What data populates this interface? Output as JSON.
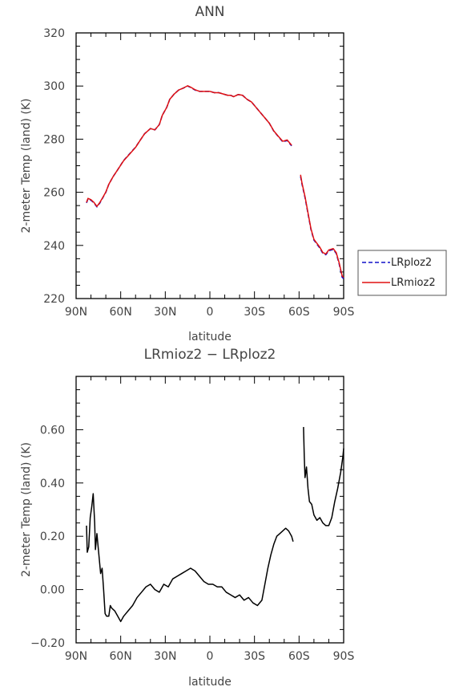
{
  "colors": {
    "LRploz2": "#1010c8",
    "LRmioz2": "#e01010",
    "diff": "#000000"
  },
  "chart_data": [
    {
      "type": "line",
      "title": "ANN",
      "xlabel": "latitude",
      "ylabel": "2-meter Temp (land) (K)",
      "xlim": [
        90,
        -90
      ],
      "ylim": [
        220,
        320
      ],
      "x_ticks": [
        90,
        60,
        30,
        0,
        -30,
        -60,
        -90
      ],
      "x_tick_labels": [
        "90N",
        "60N",
        "30N",
        "0",
        "30S",
        "60S",
        "90S"
      ],
      "y_ticks": [
        220,
        240,
        260,
        280,
        300,
        320
      ],
      "y_tick_labels": [
        "220",
        "240",
        "260",
        "280",
        "300",
        "320"
      ],
      "legend_position": "right",
      "grid": false,
      "series": [
        {
          "name": "LRploz2",
          "style": "dashed",
          "segments": [
            [
              [
                83,
                256
              ],
              [
                82,
                257.5
              ],
              [
                80,
                257
              ],
              [
                78,
                256
              ],
              [
                76,
                254.5
              ],
              [
                74,
                256
              ],
              [
                72,
                258
              ],
              [
                70,
                260
              ],
              [
                68,
                263
              ],
              [
                65,
                266
              ],
              [
                62,
                268.5
              ],
              [
                58,
                272
              ],
              [
                54,
                274.5
              ],
              [
                50,
                277
              ],
              [
                47,
                279.5
              ],
              [
                44,
                282
              ],
              [
                40,
                284
              ],
              [
                37,
                283.5
              ],
              [
                34,
                285.5
              ],
              [
                32,
                289
              ],
              [
                29,
                292
              ],
              [
                27,
                295
              ],
              [
                24,
                297
              ],
              [
                21,
                298.5
              ],
              [
                18,
                299.2
              ],
              [
                15,
                300
              ],
              [
                13,
                299.5
              ],
              [
                10,
                298.5
              ],
              [
                7,
                298
              ],
              [
                4,
                298
              ],
              [
                0,
                298
              ],
              [
                -3,
                297.5
              ],
              [
                -6,
                297.5
              ],
              [
                -9,
                297
              ],
              [
                -12,
                296.5
              ],
              [
                -14,
                296.5
              ],
              [
                -16,
                296
              ],
              [
                -19,
                296.8
              ],
              [
                -22,
                296.5
              ],
              [
                -25,
                295
              ],
              [
                -28,
                294
              ],
              [
                -31,
                292
              ],
              [
                -34,
                290
              ],
              [
                -37,
                288
              ],
              [
                -40,
                286
              ],
              [
                -43,
                283
              ],
              [
                -46,
                281
              ],
              [
                -49,
                279
              ],
              [
                -52,
                279.5
              ],
              [
                -55,
                277.5
              ]
            ],
            [
              [
                -61,
                266
              ],
              [
                -62,
                263
              ],
              [
                -64,
                258
              ],
              [
                -66,
                252
              ],
              [
                -68,
                246
              ],
              [
                -70,
                242
              ],
              [
                -72,
                240.5
              ],
              [
                -74,
                239
              ],
              [
                -76,
                237
              ],
              [
                -78,
                236.5
              ],
              [
                -80,
                238
              ],
              [
                -83,
                238.5
              ],
              [
                -85,
                237
              ],
              [
                -87,
                233
              ],
              [
                -89,
                228
              ],
              [
                -90,
                227.5
              ]
            ]
          ]
        },
        {
          "name": "LRmioz2",
          "style": "solid",
          "segments": [
            [
              [
                83,
                256.2
              ],
              [
                82,
                257.7
              ],
              [
                80,
                257.2
              ],
              [
                78,
                256.2
              ],
              [
                76,
                254.7
              ],
              [
                74,
                256.2
              ],
              [
                72,
                258.1
              ],
              [
                70,
                260.1
              ],
              [
                68,
                263
              ],
              [
                65,
                266
              ],
              [
                62,
                268.5
              ],
              [
                58,
                271.9
              ],
              [
                54,
                274.4
              ],
              [
                50,
                276.9
              ],
              [
                47,
                279.5
              ],
              [
                44,
                282
              ],
              [
                40,
                284
              ],
              [
                37,
                283.5
              ],
              [
                34,
                285.5
              ],
              [
                32,
                289
              ],
              [
                29,
                292
              ],
              [
                27,
                295
              ],
              [
                24,
                297
              ],
              [
                21,
                298.5
              ],
              [
                18,
                299.2
              ],
              [
                15,
                300.1
              ],
              [
                13,
                299.6
              ],
              [
                10,
                298.6
              ],
              [
                7,
                298
              ],
              [
                4,
                298
              ],
              [
                0,
                298
              ],
              [
                -3,
                297.5
              ],
              [
                -6,
                297.5
              ],
              [
                -9,
                297
              ],
              [
                -12,
                296.5
              ],
              [
                -14,
                296.5
              ],
              [
                -16,
                296
              ],
              [
                -19,
                296.8
              ],
              [
                -22,
                296.5
              ],
              [
                -25,
                295
              ],
              [
                -28,
                294
              ],
              [
                -31,
                292
              ],
              [
                -34,
                290
              ],
              [
                -37,
                288
              ],
              [
                -40,
                286
              ],
              [
                -43,
                283.1
              ],
              [
                -46,
                281.1
              ],
              [
                -49,
                279.2
              ],
              [
                -52,
                279.7
              ],
              [
                -55,
                277.7
              ]
            ],
            [
              [
                -61,
                266.6
              ],
              [
                -62,
                263.4
              ],
              [
                -64,
                258.4
              ],
              [
                -66,
                252.3
              ],
              [
                -68,
                246.3
              ],
              [
                -70,
                242.3
              ],
              [
                -72,
                240.8
              ],
              [
                -74,
                239.3
              ],
              [
                -76,
                237.3
              ],
              [
                -78,
                236.8
              ],
              [
                -80,
                238.3
              ],
              [
                -83,
                238.8
              ],
              [
                -85,
                237.3
              ],
              [
                -87,
                233.4
              ],
              [
                -89,
                228.5
              ],
              [
                -90,
                228
              ]
            ]
          ]
        }
      ]
    },
    {
      "type": "line",
      "title": "LRmioz2 − LRploz2",
      "xlabel": "latitude",
      "ylabel": "2-meter Temp (land) (K)",
      "xlim": [
        90,
        -90
      ],
      "ylim": [
        -0.2,
        0.8
      ],
      "x_ticks": [
        90,
        60,
        30,
        0,
        -30,
        -60,
        -90
      ],
      "x_tick_labels": [
        "90N",
        "60N",
        "30N",
        "0",
        "30S",
        "60S",
        "90S"
      ],
      "y_ticks": [
        -0.2,
        0,
        0.2,
        0.4,
        0.6
      ],
      "y_tick_labels": [
        "−0.20",
        "0.00",
        "0.20",
        "0.40",
        "0.60"
      ],
      "grid": false,
      "series": [
        {
          "style": "solid",
          "segments": [
            [
              [
                83,
                0.24
              ],
              [
                82.5,
                0.14
              ],
              [
                81.5,
                0.16
              ],
              [
                80.5,
                0.27
              ],
              [
                79.5,
                0.31
              ],
              [
                78.5,
                0.36
              ],
              [
                77.5,
                0.25
              ],
              [
                77,
                0.15
              ],
              [
                76,
                0.21
              ],
              [
                75,
                0.15
              ],
              [
                74.5,
                0.12
              ],
              [
                73.5,
                0.06
              ],
              [
                72.5,
                0.08
              ],
              [
                71.5,
                0.0
              ],
              [
                70.5,
                -0.09
              ],
              [
                69.5,
                -0.1
              ],
              [
                68,
                -0.1
              ],
              [
                67,
                -0.06
              ],
              [
                66,
                -0.07
              ],
              [
                64,
                -0.08
              ],
              [
                62,
                -0.1
              ],
              [
                60,
                -0.12
              ],
              [
                58,
                -0.1
              ],
              [
                55,
                -0.08
              ],
              [
                52,
                -0.06
              ],
              [
                49,
                -0.03
              ],
              [
                46,
                -0.01
              ],
              [
                43,
                0.01
              ],
              [
                40,
                0.02
              ],
              [
                37,
                0.0
              ],
              [
                34,
                -0.01
              ],
              [
                31,
                0.02
              ],
              [
                28,
                0.01
              ],
              [
                25,
                0.04
              ],
              [
                22,
                0.05
              ],
              [
                19,
                0.06
              ],
              [
                16,
                0.07
              ],
              [
                13,
                0.08
              ],
              [
                10,
                0.07
              ],
              [
                7,
                0.05
              ],
              [
                4,
                0.03
              ],
              [
                1,
                0.02
              ],
              [
                -2,
                0.02
              ],
              [
                -5,
                0.01
              ],
              [
                -8,
                0.01
              ],
              [
                -11,
                -0.01
              ],
              [
                -14,
                -0.02
              ],
              [
                -17,
                -0.03
              ],
              [
                -20,
                -0.02
              ],
              [
                -23,
                -0.04
              ],
              [
                -26,
                -0.03
              ],
              [
                -29,
                -0.05
              ],
              [
                -32,
                -0.06
              ],
              [
                -35,
                -0.04
              ],
              [
                -37,
                0.02
              ],
              [
                -39,
                0.08
              ],
              [
                -41,
                0.13
              ],
              [
                -43,
                0.17
              ],
              [
                -45,
                0.2
              ],
              [
                -47,
                0.21
              ],
              [
                -49,
                0.22
              ],
              [
                -51,
                0.23
              ],
              [
                -53,
                0.22
              ],
              [
                -55,
                0.2
              ],
              [
                -56,
                0.18
              ]
            ],
            [
              [
                -63,
                0.61
              ],
              [
                -63.5,
                0.5
              ],
              [
                -64,
                0.42
              ],
              [
                -65,
                0.46
              ],
              [
                -66,
                0.38
              ],
              [
                -67,
                0.33
              ],
              [
                -68.5,
                0.32
              ],
              [
                -70,
                0.28
              ],
              [
                -72,
                0.26
              ],
              [
                -74,
                0.27
              ],
              [
                -76,
                0.25
              ],
              [
                -78,
                0.24
              ],
              [
                -80,
                0.24
              ],
              [
                -82,
                0.27
              ],
              [
                -84,
                0.33
              ],
              [
                -86,
                0.38
              ],
              [
                -88,
                0.44
              ],
              [
                -89.5,
                0.5
              ],
              [
                -90,
                0.53
              ]
            ]
          ]
        }
      ]
    }
  ],
  "legend": {
    "items": [
      {
        "name": "LRploz2",
        "style": "dashed"
      },
      {
        "name": "LRmioz2",
        "style": "solid"
      }
    ]
  }
}
